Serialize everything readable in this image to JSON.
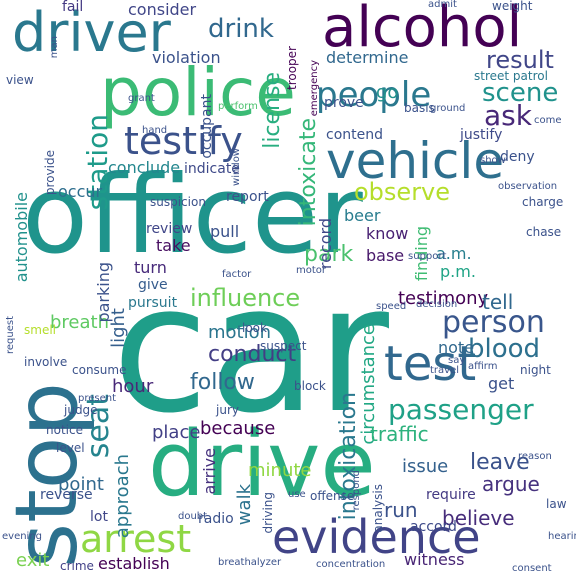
{
  "words": [
    {
      "text": "car",
      "color": "#1f9e89"
    },
    {
      "text": "officer",
      "color": "#1f948c"
    },
    {
      "text": "stop",
      "color": "#2c718e"
    },
    {
      "text": "drive",
      "color": "#27ad81"
    },
    {
      "text": "police",
      "color": "#3bbb75"
    },
    {
      "text": "alcohol",
      "color": "#440154"
    },
    {
      "text": "driver",
      "color": "#2a788e"
    },
    {
      "text": "vehicle",
      "color": "#2e6f8e"
    },
    {
      "text": "testify",
      "color": "#3b528b"
    },
    {
      "text": "test",
      "color": "#31688e"
    },
    {
      "text": "evidence",
      "color": "#414487"
    },
    {
      "text": "arrest",
      "color": "#8fd744"
    },
    {
      "text": "people",
      "color": "#2a788e"
    },
    {
      "text": "person",
      "color": "#39568c"
    },
    {
      "text": "passenger",
      "color": "#1fa187"
    },
    {
      "text": "blood",
      "color": "#2d708e"
    },
    {
      "text": "influence",
      "color": "#6ece58"
    },
    {
      "text": "seat",
      "color": "#25848e"
    },
    {
      "text": "station",
      "color": "#1e9b8a"
    },
    {
      "text": "scene",
      "color": "#20928c"
    },
    {
      "text": "result",
      "color": "#404688"
    },
    {
      "text": "ask",
      "color": "#482878"
    },
    {
      "text": "drink",
      "color": "#31688e"
    },
    {
      "text": "observe",
      "color": "#b5de2b"
    },
    {
      "text": "license",
      "color": "#28ae80"
    },
    {
      "text": "intoxicate",
      "color": "#35b779"
    },
    {
      "text": "intoxication",
      "color": "#2a788e"
    },
    {
      "text": "circumstance",
      "color": "#22a884"
    },
    {
      "text": "testimony",
      "color": "#440154"
    },
    {
      "text": "park",
      "color": "#4ac16d"
    },
    {
      "text": "follow",
      "color": "#31688e"
    },
    {
      "text": "conduct",
      "color": "#433e85"
    },
    {
      "text": "traffic",
      "color": "#2db27d"
    },
    {
      "text": "leave",
      "color": "#3b528b"
    },
    {
      "text": "argue",
      "color": "#46327e"
    },
    {
      "text": "believe",
      "color": "#472d7b"
    },
    {
      "text": "because",
      "color": "#440154"
    },
    {
      "text": "place",
      "color": "#424086"
    },
    {
      "text": "hour",
      "color": "#482878"
    },
    {
      "text": "walk",
      "color": "#2c728e"
    },
    {
      "text": "approach",
      "color": "#2a788e"
    },
    {
      "text": "run",
      "color": "#3b528b"
    },
    {
      "text": "issue",
      "color": "#34618d"
    },
    {
      "text": "consider",
      "color": "#404688"
    },
    {
      "text": "violation",
      "color": "#3b528b"
    },
    {
      "text": "determine",
      "color": "#31688e"
    },
    {
      "text": "go",
      "color": "#21918c"
    },
    {
      "text": "occur",
      "color": "#2e6e8e"
    },
    {
      "text": "conclude",
      "color": "#24878e"
    },
    {
      "text": "indicate",
      "color": "#3e4989"
    },
    {
      "text": "record",
      "color": "#3f4889"
    },
    {
      "text": "beer",
      "color": "#287c8e"
    },
    {
      "text": "know",
      "color": "#482173"
    },
    {
      "text": "base",
      "color": "#48196b"
    },
    {
      "text": "finding",
      "color": "#3fbc73"
    },
    {
      "text": "a.m.",
      "color": "#277f8e"
    },
    {
      "text": "p.m.",
      "color": "#20a486"
    },
    {
      "text": "take",
      "color": "#470e61"
    },
    {
      "text": "turn",
      "color": "#472a7a"
    },
    {
      "text": "give",
      "color": "#365c8d"
    },
    {
      "text": "pull",
      "color": "#3b528b"
    },
    {
      "text": "review",
      "color": "#404688"
    },
    {
      "text": "report",
      "color": "#3b528b"
    },
    {
      "text": "breath",
      "color": "#5ec962"
    },
    {
      "text": "pursuit",
      "color": "#2a788e"
    },
    {
      "text": "light",
      "color": "#355f8d"
    },
    {
      "text": "parking",
      "color": "#3b528b"
    },
    {
      "text": "automobile",
      "color": "#21918c"
    },
    {
      "text": "motion",
      "color": "#2b758e"
    },
    {
      "text": "minute",
      "color": "#90d743"
    },
    {
      "text": "arrive",
      "color": "#46327e"
    },
    {
      "text": "point",
      "color": "#31688e"
    },
    {
      "text": "reverse",
      "color": "#3b528b"
    },
    {
      "text": "exit",
      "color": "#7ad151"
    },
    {
      "text": "establish",
      "color": "#440154"
    },
    {
      "text": "crime",
      "color": "#424086"
    },
    {
      "text": "radio",
      "color": "#3b528b"
    },
    {
      "text": "lot",
      "color": "#404688"
    },
    {
      "text": "witness",
      "color": "#482575"
    },
    {
      "text": "accord",
      "color": "#3e4a89"
    },
    {
      "text": "require",
      "color": "#443a83"
    },
    {
      "text": "tell",
      "color": "#31688e"
    },
    {
      "text": "get",
      "color": "#3b528b"
    },
    {
      "text": "note",
      "color": "#31688e"
    },
    {
      "text": "fail",
      "color": "#443983"
    },
    {
      "text": "occupant",
      "color": "#3b528b"
    },
    {
      "text": "contend",
      "color": "#3b528b"
    },
    {
      "text": "deny",
      "color": "#3b528b"
    },
    {
      "text": "prove",
      "color": "#3b528b"
    },
    {
      "text": "justify",
      "color": "#3e4a89"
    },
    {
      "text": "trooper",
      "color": "#440154"
    },
    {
      "text": "emergency",
      "color": "#440154"
    },
    {
      "text": "street patrol",
      "color": "#2a788e"
    },
    {
      "text": "admit",
      "color": "#3b528b"
    },
    {
      "text": "weight",
      "color": "#3b528b"
    },
    {
      "text": "man",
      "color": "#3b528b"
    },
    {
      "text": "view",
      "color": "#3b528b"
    },
    {
      "text": "provide",
      "color": "#3b528b"
    },
    {
      "text": "hand",
      "color": "#3b528b"
    },
    {
      "text": "perform",
      "color": "#4ac16d"
    },
    {
      "text": "window",
      "color": "#3b528b"
    },
    {
      "text": "suspicion",
      "color": "#3b528b"
    },
    {
      "text": "observation",
      "color": "#3b528b"
    },
    {
      "text": "charge",
      "color": "#3b528b"
    },
    {
      "text": "chase",
      "color": "#3b528b"
    },
    {
      "text": "support",
      "color": "#3b528b"
    },
    {
      "text": "speed",
      "color": "#3b528b"
    },
    {
      "text": "decision",
      "color": "#3b528b"
    },
    {
      "text": "suspect",
      "color": "#3b528b"
    },
    {
      "text": "look",
      "color": "#3b528b"
    },
    {
      "text": "block",
      "color": "#3b528b"
    },
    {
      "text": "consume",
      "color": "#3b528b"
    },
    {
      "text": "present",
      "color": "#3b528b"
    },
    {
      "text": "judge",
      "color": "#3b528b"
    },
    {
      "text": "smell",
      "color": "#b5de2b"
    },
    {
      "text": "involve",
      "color": "#3b528b"
    },
    {
      "text": "request",
      "color": "#3b528b"
    },
    {
      "text": "notice",
      "color": "#3b528b"
    },
    {
      "text": "level",
      "color": "#3b528b"
    },
    {
      "text": "jury",
      "color": "#3b528b"
    },
    {
      "text": "offense",
      "color": "#3b528b"
    },
    {
      "text": "driving",
      "color": "#3b528b"
    },
    {
      "text": "doubt",
      "color": "#3b528b"
    },
    {
      "text": "analysis",
      "color": "#3b528b"
    },
    {
      "text": "reason",
      "color": "#3b528b"
    },
    {
      "text": "law",
      "color": "#3b528b"
    },
    {
      "text": "night",
      "color": "#3b528b"
    },
    {
      "text": "say",
      "color": "#3b528b"
    },
    {
      "text": "travel",
      "color": "#3b528b"
    },
    {
      "text": "affirm",
      "color": "#3b528b"
    },
    {
      "text": "evening",
      "color": "#3b528b"
    },
    {
      "text": "respond",
      "color": "#3b528b"
    },
    {
      "text": "concentration",
      "color": "#3b528b"
    },
    {
      "text": "breathalyzer",
      "color": "#3b528b"
    },
    {
      "text": "hearing",
      "color": "#3b528b"
    },
    {
      "text": "consent",
      "color": "#3b528b"
    },
    {
      "text": "grant",
      "color": "#3b528b"
    },
    {
      "text": "motor",
      "color": "#3b528b"
    },
    {
      "text": "factor",
      "color": "#3b528b"
    },
    {
      "text": "use",
      "color": "#3b528b"
    },
    {
      "text": "ground",
      "color": "#3b528b"
    },
    {
      "text": "basis",
      "color": "#3b528b"
    },
    {
      "text": "come",
      "color": "#3b528b"
    },
    {
      "text": "show",
      "color": "#3b528b"
    }
  ]
}
